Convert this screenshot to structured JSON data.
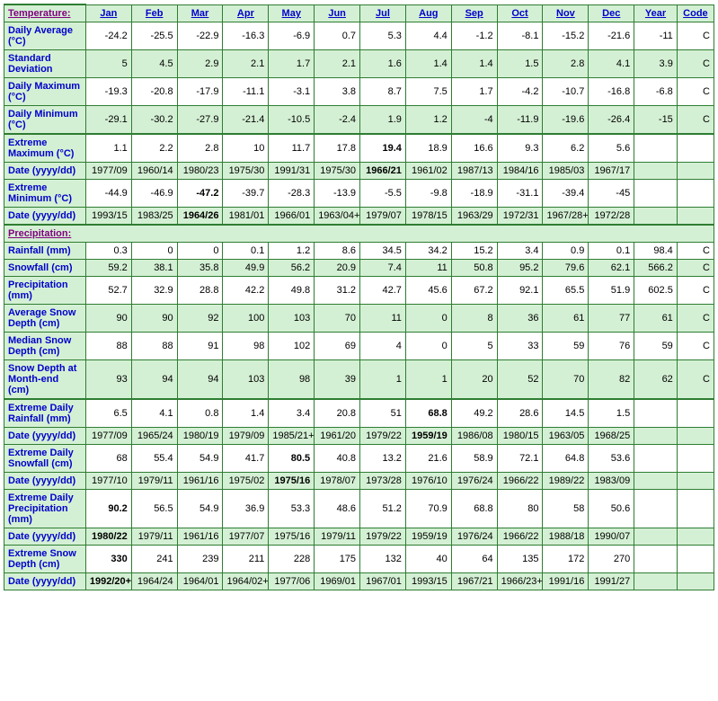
{
  "headers": [
    "Jan",
    "Feb",
    "Mar",
    "Apr",
    "May",
    "Jun",
    "Jul",
    "Aug",
    "Sep",
    "Oct",
    "Nov",
    "Dec",
    "Year",
    "Code"
  ],
  "sections": [
    {
      "title": "Temperature:",
      "rows": [
        {
          "label": "Daily Average (°C)",
          "shade": "white",
          "bold": [],
          "cells": [
            "-24.2",
            "-25.5",
            "-22.9",
            "-16.3",
            "-6.9",
            "0.7",
            "5.3",
            "4.4",
            "-1.2",
            "-8.1",
            "-15.2",
            "-21.6",
            "-11",
            "C"
          ]
        },
        {
          "label": "Standard Deviation",
          "shade": "green",
          "bold": [],
          "cells": [
            "5",
            "4.5",
            "2.9",
            "2.1",
            "1.7",
            "2.1",
            "1.6",
            "1.4",
            "1.4",
            "1.5",
            "2.8",
            "4.1",
            "3.9",
            "C"
          ]
        },
        {
          "label": "Daily Maximum (°C)",
          "shade": "white",
          "bold": [],
          "cells": [
            "-19.3",
            "-20.8",
            "-17.9",
            "-11.1",
            "-3.1",
            "3.8",
            "8.7",
            "7.5",
            "1.7",
            "-4.2",
            "-10.7",
            "-16.8",
            "-6.8",
            "C"
          ]
        },
        {
          "label": "Daily Minimum (°C)",
          "shade": "green",
          "bold": [],
          "cells": [
            "-29.1",
            "-30.2",
            "-27.9",
            "-21.4",
            "-10.5",
            "-2.4",
            "1.9",
            "1.2",
            "-4",
            "-11.9",
            "-19.6",
            "-26.4",
            "-15",
            "C"
          ]
        },
        {
          "label": "Extreme Maximum (°C)",
          "shade": "white",
          "bold": [
            6
          ],
          "cells": [
            "1.1",
            "2.2",
            "2.8",
            "10",
            "11.7",
            "17.8",
            "19.4",
            "18.9",
            "16.6",
            "9.3",
            "6.2",
            "5.6",
            "",
            ""
          ],
          "topBorder": true
        },
        {
          "label": "Date (yyyy/dd)",
          "shade": "green",
          "bold": [
            6
          ],
          "cells": [
            "1977/09",
            "1960/14",
            "1980/23",
            "1975/30",
            "1991/31",
            "1975/30",
            "1966/21",
            "1961/02",
            "1987/13",
            "1984/16",
            "1985/03",
            "1967/17",
            "",
            ""
          ]
        },
        {
          "label": "Extreme Minimum (°C)",
          "shade": "white",
          "bold": [
            2
          ],
          "cells": [
            "-44.9",
            "-46.9",
            "-47.2",
            "-39.7",
            "-28.3",
            "-13.9",
            "-5.5",
            "-9.8",
            "-18.9",
            "-31.1",
            "-39.4",
            "-45",
            "",
            ""
          ]
        },
        {
          "label": "Date (yyyy/dd)",
          "shade": "green",
          "bold": [
            2
          ],
          "cells": [
            "1993/15",
            "1983/25",
            "1964/26",
            "1981/01",
            "1966/01",
            "1963/04+",
            "1979/07",
            "1978/15",
            "1963/29",
            "1972/31",
            "1967/28+",
            "1972/28",
            "",
            ""
          ]
        }
      ]
    },
    {
      "title": "Precipitation:",
      "rows": [
        {
          "label": "Rainfall (mm)",
          "shade": "white",
          "bold": [],
          "cells": [
            "0.3",
            "0",
            "0",
            "0.1",
            "1.2",
            "8.6",
            "34.5",
            "34.2",
            "15.2",
            "3.4",
            "0.9",
            "0.1",
            "98.4",
            "C"
          ]
        },
        {
          "label": "Snowfall (cm)",
          "shade": "green",
          "bold": [],
          "cells": [
            "59.2",
            "38.1",
            "35.8",
            "49.9",
            "56.2",
            "20.9",
            "7.4",
            "11",
            "50.8",
            "95.2",
            "79.6",
            "62.1",
            "566.2",
            "C"
          ]
        },
        {
          "label": "Precipitation (mm)",
          "shade": "white",
          "bold": [],
          "cells": [
            "52.7",
            "32.9",
            "28.8",
            "42.2",
            "49.8",
            "31.2",
            "42.7",
            "45.6",
            "67.2",
            "92.1",
            "65.5",
            "51.9",
            "602.5",
            "C"
          ]
        },
        {
          "label": "Average Snow Depth (cm)",
          "shade": "green",
          "bold": [],
          "cells": [
            "90",
            "90",
            "92",
            "100",
            "103",
            "70",
            "11",
            "0",
            "8",
            "36",
            "61",
            "77",
            "61",
            "C"
          ]
        },
        {
          "label": "Median Snow Depth (cm)",
          "shade": "white",
          "bold": [],
          "cells": [
            "88",
            "88",
            "91",
            "98",
            "102",
            "69",
            "4",
            "0",
            "5",
            "33",
            "59",
            "76",
            "59",
            "C"
          ]
        },
        {
          "label": "Snow Depth at Month-end (cm)",
          "shade": "green",
          "bold": [],
          "cells": [
            "93",
            "94",
            "94",
            "103",
            "98",
            "39",
            "1",
            "1",
            "20",
            "52",
            "70",
            "82",
            "62",
            "C"
          ]
        },
        {
          "label": "Extreme Daily Rainfall (mm)",
          "shade": "white",
          "bold": [
            7
          ],
          "cells": [
            "6.5",
            "4.1",
            "0.8",
            "1.4",
            "3.4",
            "20.8",
            "51",
            "68.8",
            "49.2",
            "28.6",
            "14.5",
            "1.5",
            "",
            ""
          ],
          "topBorder": true
        },
        {
          "label": "Date (yyyy/dd)",
          "shade": "green",
          "bold": [
            7
          ],
          "cells": [
            "1977/09",
            "1965/24",
            "1980/19",
            "1979/09",
            "1985/21+",
            "1961/20",
            "1979/22",
            "1959/19",
            "1986/08",
            "1980/15",
            "1963/05",
            "1968/25",
            "",
            ""
          ]
        },
        {
          "label": "Extreme Daily Snowfall (cm)",
          "shade": "white",
          "bold": [
            4
          ],
          "cells": [
            "68",
            "55.4",
            "54.9",
            "41.7",
            "80.5",
            "40.8",
            "13.2",
            "21.6",
            "58.9",
            "72.1",
            "64.8",
            "53.6",
            "",
            ""
          ]
        },
        {
          "label": "Date (yyyy/dd)",
          "shade": "green",
          "bold": [
            4
          ],
          "cells": [
            "1977/10",
            "1979/11",
            "1961/16",
            "1975/02",
            "1975/16",
            "1978/07",
            "1973/28",
            "1976/10",
            "1976/24",
            "1966/22",
            "1989/22",
            "1983/09",
            "",
            ""
          ]
        },
        {
          "label": "Extreme Daily Precipitation (mm)",
          "shade": "white",
          "bold": [
            0
          ],
          "cells": [
            "90.2",
            "56.5",
            "54.9",
            "36.9",
            "53.3",
            "48.6",
            "51.2",
            "70.9",
            "68.8",
            "80",
            "58",
            "50.6",
            "",
            ""
          ]
        },
        {
          "label": "Date (yyyy/dd)",
          "shade": "green",
          "bold": [
            0
          ],
          "cells": [
            "1980/22",
            "1979/11",
            "1961/16",
            "1977/07",
            "1975/16",
            "1979/11",
            "1979/22",
            "1959/19",
            "1976/24",
            "1966/22",
            "1988/18",
            "1990/07",
            "",
            ""
          ]
        },
        {
          "label": "Extreme Snow Depth (cm)",
          "shade": "white",
          "bold": [
            0
          ],
          "cells": [
            "330",
            "241",
            "239",
            "211",
            "228",
            "175",
            "132",
            "40",
            "64",
            "135",
            "172",
            "270",
            "",
            ""
          ]
        },
        {
          "label": "Date (yyyy/dd)",
          "shade": "green",
          "bold": [
            0
          ],
          "cells": [
            "1992/20+",
            "1964/24",
            "1964/01",
            "1964/02+",
            "1977/06",
            "1969/01",
            "1967/01",
            "1993/15",
            "1967/21",
            "1966/23+",
            "1991/16",
            "1991/27",
            "",
            ""
          ]
        }
      ]
    }
  ]
}
